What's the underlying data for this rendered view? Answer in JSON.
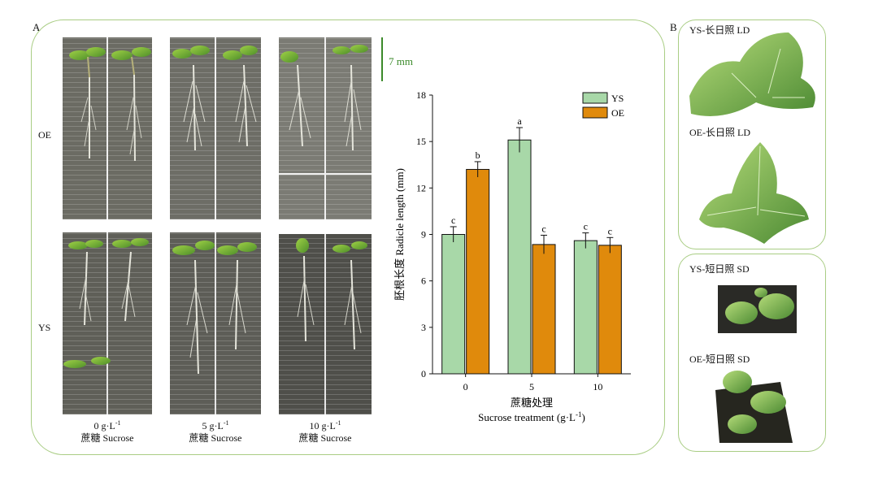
{
  "panel_a": {
    "letter": "A",
    "row_labels": [
      "OE",
      "YS"
    ],
    "scale_bar": "7 mm",
    "captions": [
      {
        "conc": "0 g·L",
        "sup": "-1",
        "name": "蔗糖 Sucrose"
      },
      {
        "conc": "5 g·L",
        "sup": "-1",
        "name": "蔗糖 Sucrose"
      },
      {
        "conc": "10 g·L",
        "sup": "-1",
        "name": "蔗糖 Sucrose"
      }
    ]
  },
  "panel_b": {
    "letter": "B",
    "labels": [
      "YS-长日照 LD",
      "OE-长日照 LD",
      "YS-短日照 SD",
      "OE-短日照 SD"
    ]
  },
  "colors": {
    "ys": "#a8d8a8",
    "oe": "#e08a0c",
    "frame": "#a9cd84"
  },
  "chart_data": {
    "type": "bar",
    "categories": [
      "0",
      "5",
      "10"
    ],
    "series": [
      {
        "name": "YS",
        "values": [
          9.0,
          15.1,
          8.6
        ],
        "errors": [
          0.5,
          0.8,
          0.5
        ],
        "letters": [
          "c",
          "a",
          "c"
        ],
        "color": "#a8d8a8"
      },
      {
        "name": "OE",
        "values": [
          13.2,
          8.35,
          8.3
        ],
        "errors": [
          0.5,
          0.6,
          0.5
        ],
        "letters": [
          "b",
          "c",
          "c"
        ],
        "color": "#e08a0c"
      }
    ],
    "ylabel": "胚根长度 Radicle length (mm)",
    "xlabel_cn": "蔗糖处理",
    "xlabel_en": "Sucrose treatment (g·L",
    "xlabel_sup": "-1",
    "xlabel_end": ")",
    "ylim": [
      0,
      18
    ],
    "yticks": [
      0,
      3,
      6,
      9,
      12,
      15,
      18
    ],
    "legend_position": "top-right"
  }
}
